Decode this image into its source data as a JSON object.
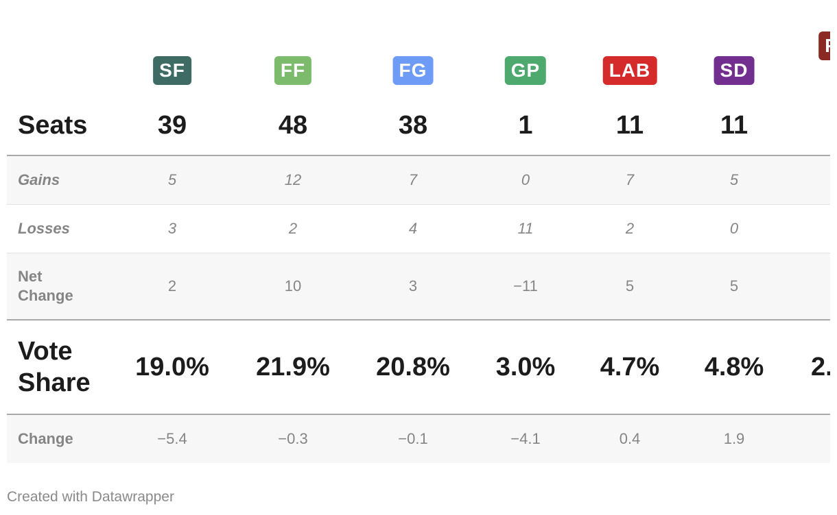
{
  "parties": [
    {
      "abbr": "SF",
      "color": "#3e6b63",
      "seats": "39",
      "gains": "5",
      "losses": "3",
      "net": "2",
      "vote": "19.0%",
      "change": "−5.4"
    },
    {
      "abbr": "FF",
      "color": "#7cbb6c",
      "seats": "48",
      "gains": "12",
      "losses": "2",
      "net": "10",
      "vote": "21.9%",
      "change": "−0.3"
    },
    {
      "abbr": "FG",
      "color": "#6e9bf5",
      "seats": "38",
      "gains": "7",
      "losses": "4",
      "net": "3",
      "vote": "20.8%",
      "change": "−0.1"
    },
    {
      "abbr": "GP",
      "color": "#4ea96e",
      "seats": "1",
      "gains": "0",
      "losses": "11",
      "net": "−11",
      "vote": "3.0%",
      "change": "−4.1"
    },
    {
      "abbr": "LAB",
      "color": "#d52b2b",
      "seats": "11",
      "gains": "7",
      "losses": "2",
      "net": "5",
      "vote": "4.7%",
      "change": "0.4"
    },
    {
      "abbr": "SD",
      "color": "#732f8f",
      "seats": "11",
      "gains": "5",
      "losses": "0",
      "net": "5",
      "vote": "4.8%",
      "change": "1.9"
    },
    {
      "abbr": "P",
      "color": "#8b2a22",
      "seats": "",
      "gains": "",
      "losses": "",
      "net": "",
      "vote": "2.",
      "change": ""
    }
  ],
  "labels": {
    "seats": "Seats",
    "gains": "Gains",
    "losses": "Losses",
    "net_line1": "Net",
    "net_line2": "Change",
    "vote_line1": "Vote",
    "vote_line2": "Share",
    "change": "Change"
  },
  "footer": "Created with Datawrapper"
}
